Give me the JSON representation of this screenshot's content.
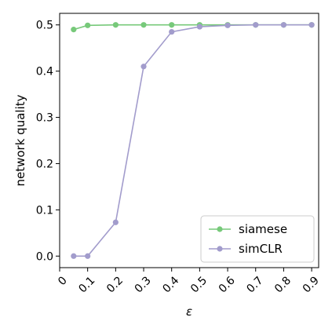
{
  "chart_data": {
    "type": "line",
    "xlabel": "ε",
    "ylabel": "network quality",
    "xlim": [
      0,
      0.925
    ],
    "ylim": [
      -0.025,
      0.525
    ],
    "x_ticks": [
      "0",
      "0.1",
      "0.2",
      "0.3",
      "0.4",
      "0.5",
      "0.6",
      "0.7",
      "0.8",
      "0.9"
    ],
    "y_ticks": [
      "0.0",
      "0.1",
      "0.2",
      "0.3",
      "0.4",
      "0.5"
    ],
    "grid": false,
    "legend_position": "lower-right",
    "series": [
      {
        "name": "siamese",
        "color": "#77c97a",
        "x": [
          0.05,
          0.1,
          0.2,
          0.3,
          0.4,
          0.5,
          0.6,
          0.7,
          0.8,
          0.9
        ],
        "y": [
          0.49,
          0.499,
          0.5,
          0.5,
          0.5,
          0.5,
          0.5,
          0.5,
          0.5,
          0.5
        ]
      },
      {
        "name": "simCLR",
        "color": "#a29ccc",
        "x": [
          0.05,
          0.1,
          0.2,
          0.3,
          0.4,
          0.5,
          0.6,
          0.7,
          0.8,
          0.9
        ],
        "y": [
          0.0,
          0.0,
          0.073,
          0.41,
          0.485,
          0.496,
          0.499,
          0.5,
          0.5,
          0.5
        ]
      }
    ]
  }
}
